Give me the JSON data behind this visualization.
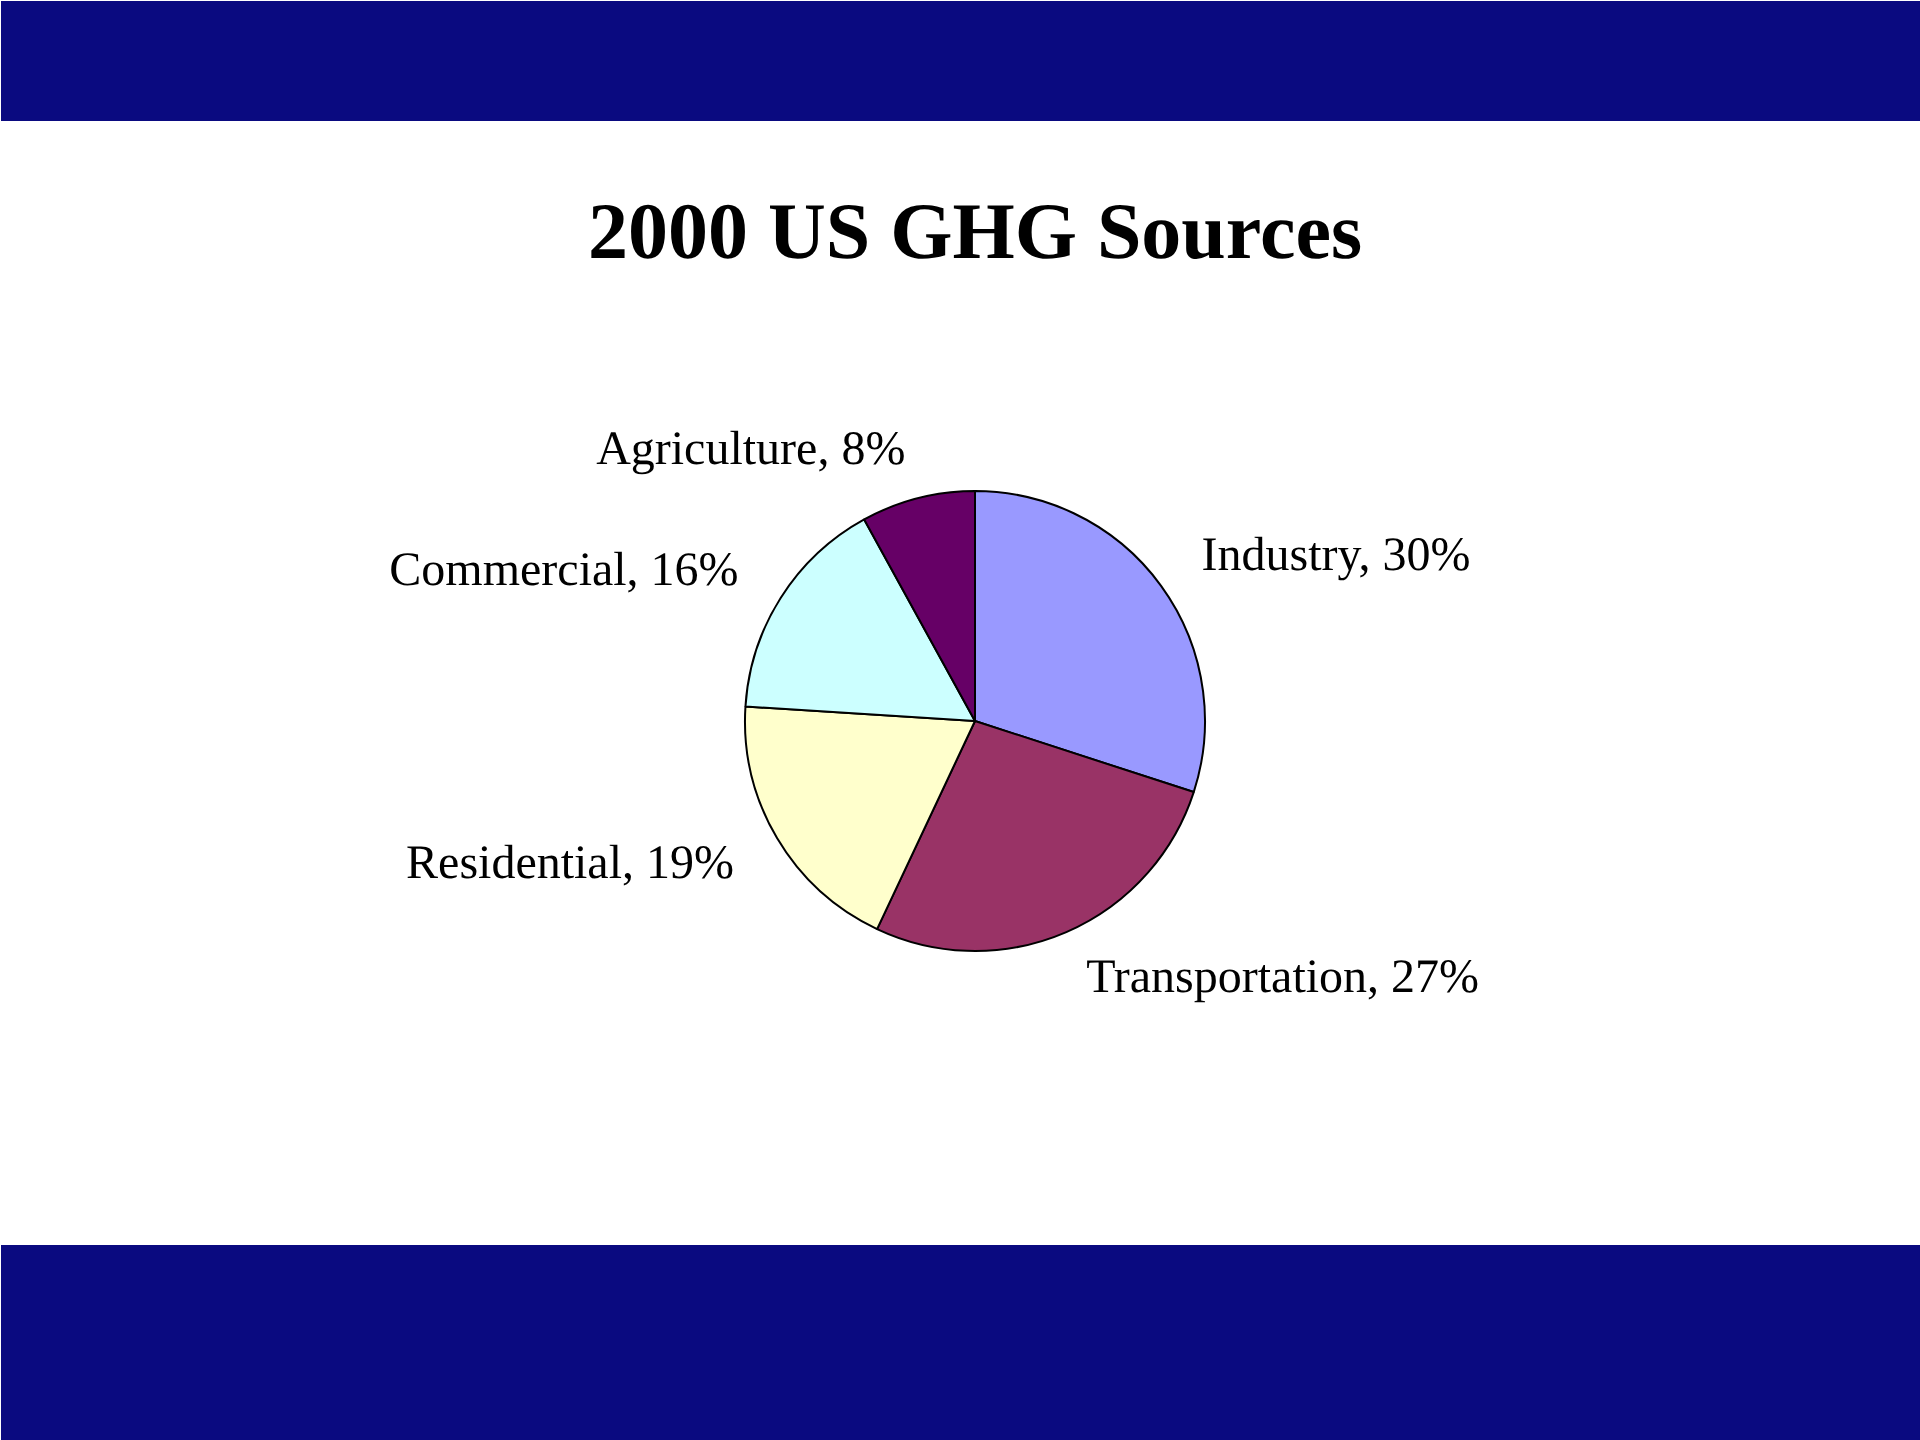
{
  "chart_data": {
    "type": "pie",
    "title": "2000 US GHG Sources",
    "categories": [
      "Industry",
      "Transportation",
      "Residential",
      "Commercial",
      "Agriculture"
    ],
    "values": [
      30,
      27,
      19,
      16,
      8
    ],
    "value_labels": [
      "30%",
      "27%",
      "19%",
      "16%",
      "8%"
    ],
    "colors": [
      "#9999ff",
      "#993366",
      "#ffffcc",
      "#ccffff",
      "#660066"
    ]
  }
}
